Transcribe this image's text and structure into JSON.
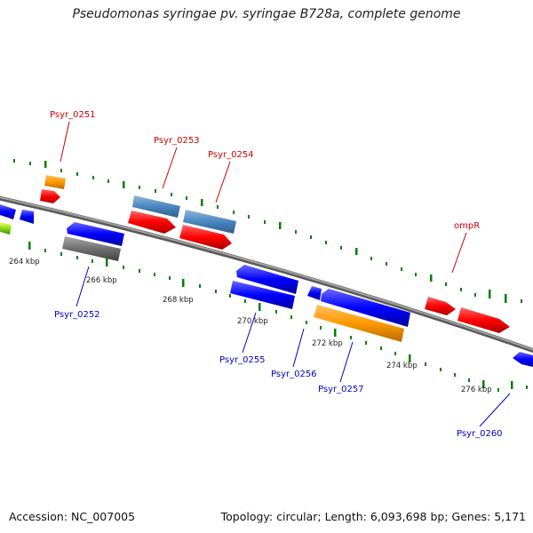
{
  "title": "Pseudomonas syringae pv. syringae B728a, complete genome",
  "footer": {
    "accession": "Accession: NC_007005",
    "topology": "Topology: circular; Length: 6,093,698 bp; Genes: 5,171"
  },
  "colors": {
    "forward_gene": "#ff0000",
    "reverse_gene": "#0000ff",
    "backbone": "#808080",
    "tick": "#008000",
    "forward_label": "#cc0000",
    "reverse_label": "#0000cc"
  },
  "scale_labels": [
    "264 kbp",
    "266 kbp",
    "268 kbp",
    "270 kbp",
    "272 kbp",
    "274 kbp",
    "276 kbp"
  ],
  "gene_labels": {
    "top": [
      "Psyr_0251",
      "Psyr_0253",
      "Psyr_0254",
      "ompR"
    ],
    "bottom": [
      "Psyr_0252",
      "Psyr_0255",
      "Psyr_0256",
      "Psyr_0257",
      "Psyr_0260"
    ]
  }
}
